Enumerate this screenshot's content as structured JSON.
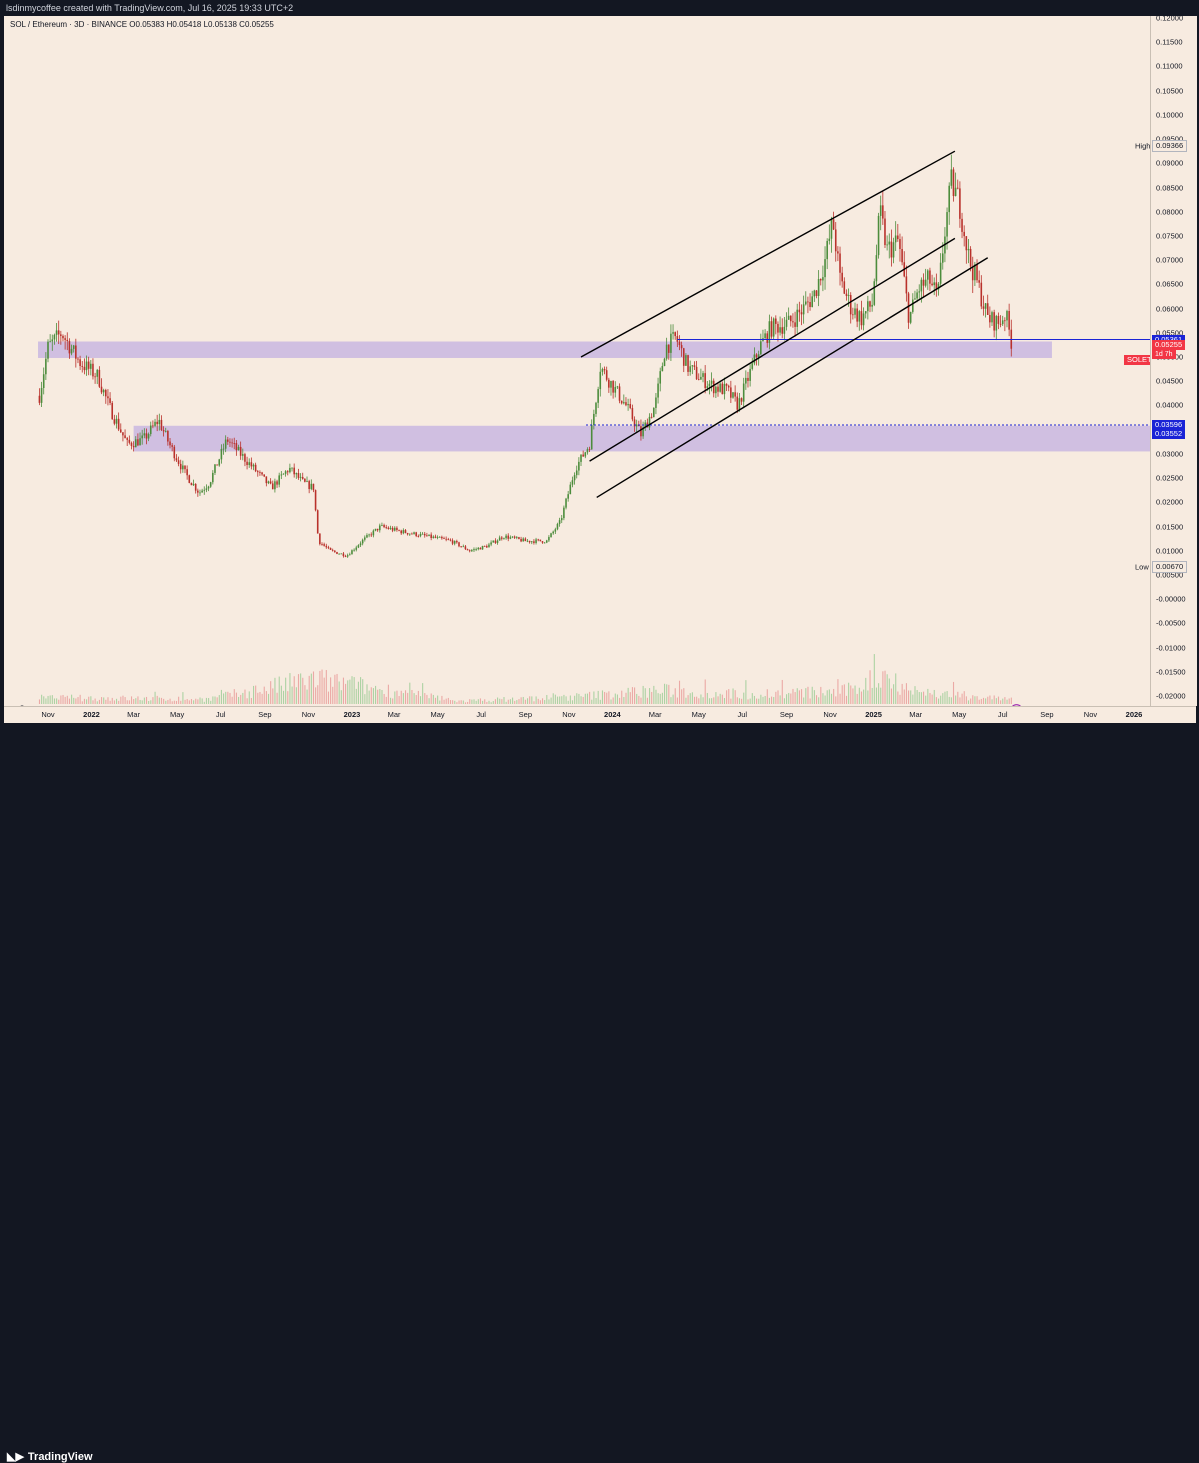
{
  "header": {
    "text": "lsdinmycoffee created with TradingView.com, Jul 16, 2025 19:33 UTC+2"
  },
  "legend": {
    "text": "SOL / Ethereum · 3D · BINANCE  O0.05383  H0.05418  L0.05138  C0.05255"
  },
  "footer": {
    "brand": "TradingView"
  },
  "price_axis": {
    "ticks": [
      "0.12000",
      "0.11500",
      "0.11000",
      "0.10500",
      "0.10000",
      "0.09500",
      "0.09000",
      "0.08500",
      "0.08000",
      "0.07500",
      "0.07000",
      "0.06500",
      "0.06000",
      "0.05500",
      "0.05000",
      "0.04500",
      "0.04000",
      "0.03500",
      "0.03000",
      "0.02500",
      "0.02000",
      "0.01500",
      "0.01000",
      "0.00500",
      "-0.00000",
      "-0.00500",
      "-0.01000",
      "-0.01500",
      "-0.02000"
    ],
    "tags": {
      "high_label": "High",
      "high_value": "0.09366",
      "low_label": "Low",
      "low_value": "0.00670",
      "level_upper": "0.05361",
      "last_price": "0.05255",
      "level_dotted": "0.03596",
      "level_dotted_2": "0.03552",
      "symbol_tag": "SOLETH",
      "countdown": "1d 7h"
    }
  },
  "time_axis": {
    "ticks": [
      "Nov",
      "2022",
      "Mar",
      "May",
      "Jul",
      "Sep",
      "Nov",
      "2023",
      "Mar",
      "May",
      "Jul",
      "Sep",
      "Nov",
      "2024",
      "Mar",
      "May",
      "Jul",
      "Sep",
      "Nov",
      "2025",
      "Mar",
      "May",
      "Jul",
      "Sep",
      "Nov",
      "2026"
    ]
  },
  "colors": {
    "background": "#f7ebe0",
    "up": "#4c8c3c",
    "down": "#b9312b",
    "zone": "#c9b7e0",
    "level_line": "#1a23d6",
    "last_price_tag": "#f23645"
  },
  "icons": [
    "tradingview-logo-icon",
    "flash-icon",
    "dino-icon"
  ],
  "chart_data": {
    "type": "candlestick",
    "title": "SOL / Ethereum · 3D · BINANCE",
    "ylim": [
      -0.02,
      0.12
    ],
    "high": 0.09366,
    "low": 0.0067,
    "last_close": 0.05255,
    "ohlc_last": {
      "open": 0.05383,
      "high": 0.05418,
      "low": 0.05138,
      "close": 0.05255
    },
    "price_path": {
      "dates": [
        "2021-10-20",
        "2021-11-01",
        "2021-11-20",
        "2021-12-15",
        "2022-01-10",
        "2022-01-25",
        "2022-02-20",
        "2022-03-15",
        "2022-04-05",
        "2022-04-20",
        "2022-05-12",
        "2022-06-01",
        "2022-06-15",
        "2022-07-10",
        "2022-08-10",
        "2022-09-10",
        "2022-10-05",
        "2022-10-25",
        "2022-11-08",
        "2022-11-15",
        "2022-12-01",
        "2022-12-25",
        "2023-01-15",
        "2023-02-10",
        "2023-03-10",
        "2023-04-15",
        "2023-05-20",
        "2023-06-15",
        "2023-07-10",
        "2023-08-01",
        "2023-09-01",
        "2023-10-01",
        "2023-10-20",
        "2023-11-10",
        "2023-11-30",
        "2023-12-15",
        "2023-12-28",
        "2024-01-20",
        "2024-02-10",
        "2024-03-01",
        "2024-03-15",
        "2024-03-30",
        "2024-04-15",
        "2024-05-01",
        "2024-05-20",
        "2024-06-10",
        "2024-06-25",
        "2024-07-10",
        "2024-07-25",
        "2024-08-10",
        "2024-09-05",
        "2024-09-25",
        "2024-10-10",
        "2024-10-25",
        "2024-11-05",
        "2024-11-15",
        "2024-12-01",
        "2024-12-15",
        "2024-12-30",
        "2025-01-10",
        "2025-01-20",
        "2025-02-05",
        "2025-02-20",
        "2025-03-05",
        "2025-03-20",
        "2025-04-01",
        "2025-04-10",
        "2025-04-20",
        "2025-05-01",
        "2025-05-15",
        "2025-05-25",
        "2025-06-10",
        "2025-06-25",
        "2025-07-05",
        "2025-07-14"
      ],
      "values": [
        0.042,
        0.052,
        0.055,
        0.049,
        0.046,
        0.04,
        0.032,
        0.033,
        0.037,
        0.032,
        0.026,
        0.022,
        0.024,
        0.033,
        0.028,
        0.023,
        0.027,
        0.024,
        0.023,
        0.012,
        0.01,
        0.009,
        0.012,
        0.015,
        0.014,
        0.013,
        0.012,
        0.01,
        0.011,
        0.013,
        0.012,
        0.012,
        0.016,
        0.027,
        0.032,
        0.048,
        0.045,
        0.04,
        0.034,
        0.04,
        0.052,
        0.054,
        0.048,
        0.046,
        0.044,
        0.043,
        0.04,
        0.046,
        0.052,
        0.056,
        0.057,
        0.06,
        0.063,
        0.07,
        0.078,
        0.066,
        0.06,
        0.058,
        0.061,
        0.08,
        0.072,
        0.074,
        0.058,
        0.064,
        0.066,
        0.062,
        0.075,
        0.086,
        0.082,
        0.07,
        0.066,
        0.058,
        0.057,
        0.059,
        0.05255
      ]
    },
    "volume_shape": {
      "dates": [
        "2021-11-15",
        "2022-06-15",
        "2022-11-09",
        "2023-06-01",
        "2023-11-15",
        "2024-03-01",
        "2024-07-01",
        "2024-11-20",
        "2025-01-18",
        "2025-03-01",
        "2025-05-01",
        "2025-07-10"
      ],
      "relative": [
        0.25,
        0.2,
        1.0,
        0.12,
        0.3,
        0.55,
        0.4,
        0.5,
        1.2,
        0.5,
        0.35,
        0.2
      ]
    },
    "zones": [
      {
        "start": "2021-10-18",
        "end": "2025-09-08",
        "low": 0.0498,
        "high": 0.0532
      },
      {
        "start": "2022-03-01",
        "end": "2026-02-01",
        "low": 0.0305,
        "high": 0.0358
      }
    ],
    "horizontal_levels": [
      {
        "start": "2024-04-01",
        "end": "2026-02-01",
        "value": 0.05361,
        "style": "solid"
      },
      {
        "start": "2023-11-25",
        "end": "2026-02-01",
        "value": 0.03596,
        "style": "dotted"
      }
    ],
    "trendlines": [
      {
        "start": [
          "2023-11-18",
          0.05
        ],
        "end": [
          "2025-04-25",
          0.0925
        ]
      },
      {
        "start": [
          "2023-11-30",
          0.0285
        ],
        "end": [
          "2025-04-25",
          0.0745
        ]
      },
      {
        "start": [
          "2023-12-10",
          0.021
        ],
        "end": [
          "2025-06-10",
          0.0705
        ]
      }
    ],
    "x_axis_labels": [
      "Nov",
      "2022",
      "Mar",
      "May",
      "Jul",
      "Sep",
      "Nov",
      "2023",
      "Mar",
      "May",
      "Jul",
      "Sep",
      "Nov",
      "2024",
      "Mar",
      "May",
      "Jul",
      "Sep",
      "Nov",
      "2025",
      "Mar",
      "May",
      "Jul",
      "Sep",
      "Nov",
      "2026"
    ],
    "grid": false,
    "legend": "top-left"
  }
}
